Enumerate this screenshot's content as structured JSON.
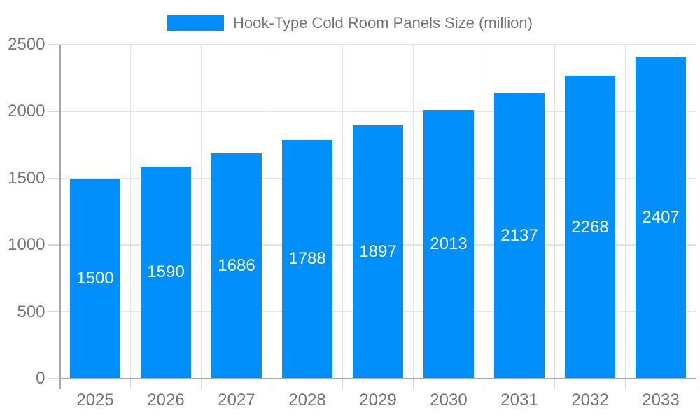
{
  "legend": {
    "label": "Hook-Type Cold Room Panels Size (million)"
  },
  "chart_data": {
    "type": "bar",
    "title": "Hook-Type Cold Room Panels Size (million)",
    "categories": [
      "2025",
      "2026",
      "2027",
      "2028",
      "2029",
      "2030",
      "2031",
      "2032",
      "2033"
    ],
    "values": [
      1500,
      1590,
      1686,
      1788,
      1897,
      2013,
      2137,
      2268,
      2407
    ],
    "series": [
      {
        "name": "Hook-Type Cold Room Panels Size (million)",
        "values": [
          1500,
          1590,
          1686,
          1788,
          1897,
          2013,
          2137,
          2268,
          2407
        ]
      }
    ],
    "xlabel": "",
    "ylabel": "",
    "ylim": [
      0,
      2500
    ],
    "yticks": [
      0,
      500,
      1000,
      1500,
      2000,
      2500
    ],
    "grid": true,
    "legend_position": "top-center",
    "value_label_position": "inside-center",
    "colors": {
      "bar": "#008FFB",
      "value_label": "#FFFFFF",
      "tick_label": "#757575",
      "legend_label": "#757575",
      "gridline": "#E3E3E3",
      "tick_mark": "#D8D8D8",
      "axis_line": "#A8A8A8",
      "background": "#FFFFFF"
    }
  }
}
